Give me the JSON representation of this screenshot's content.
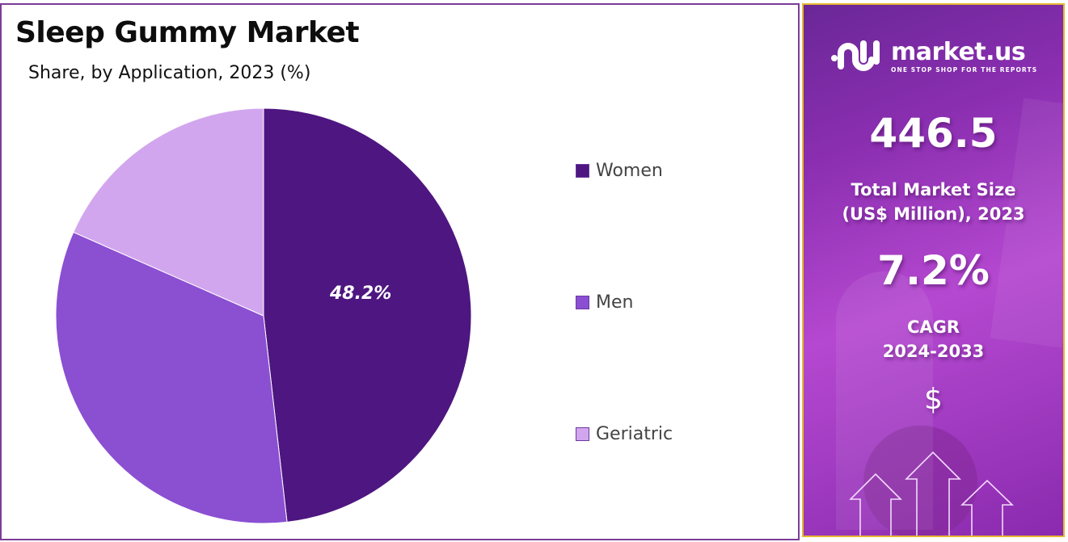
{
  "header": {
    "title": "Sleep Gummy Market",
    "subtitle": "Share, by Application, 2023 (%)"
  },
  "chart_data": {
    "type": "pie",
    "title": "Sleep Gummy Market",
    "subtitle": "Share, by Application, 2023 (%)",
    "categories": [
      "Women",
      "Men",
      "Geriatric"
    ],
    "values": [
      48.2,
      33.4,
      18.4
    ],
    "colors": [
      "#4e1680",
      "#8b4fd2",
      "#d2a6ee"
    ],
    "data_labels": [
      "48.2%",
      "",
      ""
    ],
    "start_angle": "12 o'clock, clockwise",
    "legend_position": "right"
  },
  "legend": {
    "items": [
      {
        "label": "Women",
        "color": "#4e1680"
      },
      {
        "label": "Men",
        "color": "#8b4fd2"
      },
      {
        "label": "Geriatric",
        "color": "#d2a6ee"
      }
    ]
  },
  "pie_label": "48.2%",
  "sidebar": {
    "logo_name": "market.us",
    "logo_tagline": "ONE STOP SHOP FOR THE REPORTS",
    "market_size_value": "446.5",
    "market_size_label_line1": "Total Market Size",
    "market_size_label_line2": "(US$ Million), 2023",
    "cagr_value": "7.2%",
    "cagr_label_line1": "CAGR",
    "cagr_label_line2": "2024-2033",
    "currency_symbol": "$",
    "accent_border": "#e6b832"
  }
}
